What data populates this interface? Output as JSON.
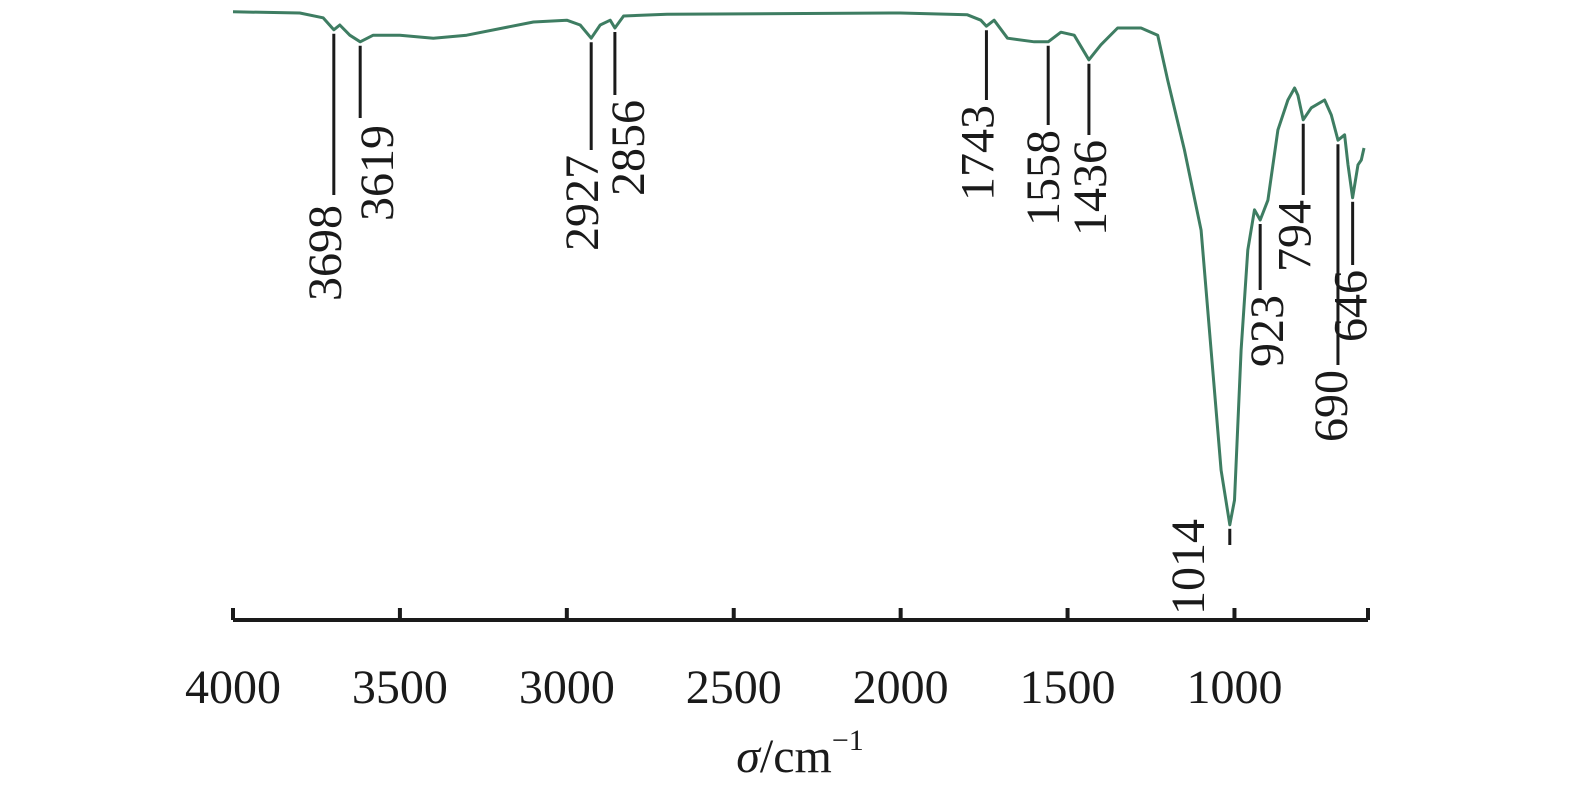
{
  "chart_data": {
    "type": "line",
    "x": [
      4000,
      3800,
      3730,
      3698,
      3680,
      3650,
      3619,
      3580,
      3500,
      3400,
      3300,
      3100,
      3000,
      2960,
      2927,
      2900,
      2870,
      2856,
      2830,
      2700,
      2000,
      1800,
      1760,
      1743,
      1720,
      1680,
      1600,
      1558,
      1520,
      1480,
      1436,
      1400,
      1350,
      1280,
      1230,
      1200,
      1150,
      1100,
      1070,
      1040,
      1014,
      1000,
      980,
      960,
      940,
      923,
      900,
      870,
      840,
      820,
      810,
      794,
      770,
      730,
      710,
      690,
      670,
      660,
      646,
      630,
      620,
      612
    ],
    "series": [
      {
        "color": "#3e7d62",
        "values": [
          99.7,
          99.5,
          98.7,
          96.7,
          97.5,
          95.8,
          94.7,
          95.8,
          95.8,
          95.3,
          95.8,
          98,
          98.3,
          97.5,
          95.3,
          97.5,
          98.3,
          97,
          99,
          99.3,
          99.5,
          99.2,
          98.3,
          97.3,
          98.3,
          95.3,
          94.7,
          94.7,
          96.3,
          95.8,
          91.7,
          94.2,
          97,
          97,
          95.8,
          88.3,
          76.7,
          63.3,
          43.3,
          23.3,
          14.2,
          18.3,
          43.3,
          60,
          66.7,
          65,
          68.3,
          80,
          85,
          87,
          85.8,
          81.7,
          83.7,
          85,
          82.5,
          78.3,
          79.2,
          74.2,
          68.7,
          74.2,
          75,
          77
        ]
      }
    ],
    "xlim": [
      4000,
      600
    ],
    "ylim": [
      0,
      100
    ],
    "xticks": [
      4000,
      3500,
      3000,
      2500,
      2000,
      1500,
      1000
    ],
    "xlabel": {
      "symbol": "σ",
      "unit": "/cm",
      "exponent": "−1"
    },
    "annotations": [
      {
        "x": 3698,
        "y": 96.7
      },
      {
        "x": 3619,
        "y": 94.7
      },
      {
        "x": 2927,
        "y": 95.3
      },
      {
        "x": 2856,
        "y": 97
      },
      {
        "x": 1743,
        "y": 97.3
      },
      {
        "x": 1558,
        "y": 94.7
      },
      {
        "x": 1436,
        "y": 91.7
      },
      {
        "x": 1014,
        "y": 14.2
      },
      {
        "x": 923,
        "y": 65
      },
      {
        "x": 794,
        "y": 81.7
      },
      {
        "x": 690,
        "y": 78.3
      },
      {
        "x": 646,
        "y": 68.7
      }
    ]
  }
}
